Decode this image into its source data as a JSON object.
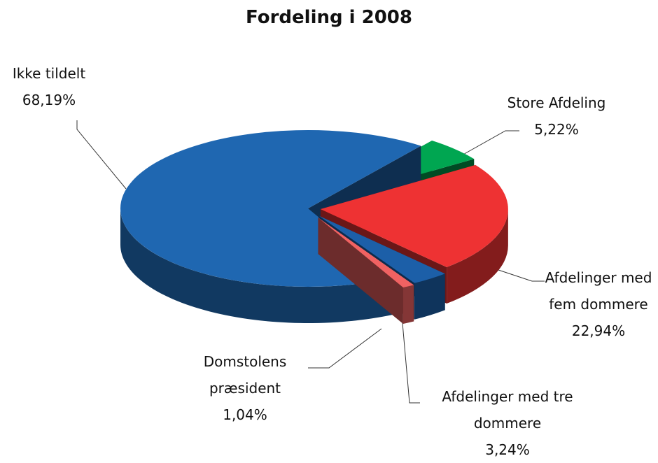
{
  "chart_data": {
    "type": "pie3d",
    "title": "Fordeling i 2008",
    "categories": [
      "Store Afdeling",
      "Afdelinger med fem dommere",
      "Afdelinger med tre dommere",
      "Domstolens præsident",
      "Ikke tildelt"
    ],
    "values": [
      5.22,
      22.94,
      3.24,
      1.04,
      68.19
    ],
    "value_labels": [
      "5,22%",
      "22,94%",
      "3,24%",
      "1,04%",
      "68,19%"
    ],
    "colors": [
      "#00a651",
      "#ee3233",
      "#1c5fa8",
      "#f06262",
      "#1f67b1"
    ]
  }
}
